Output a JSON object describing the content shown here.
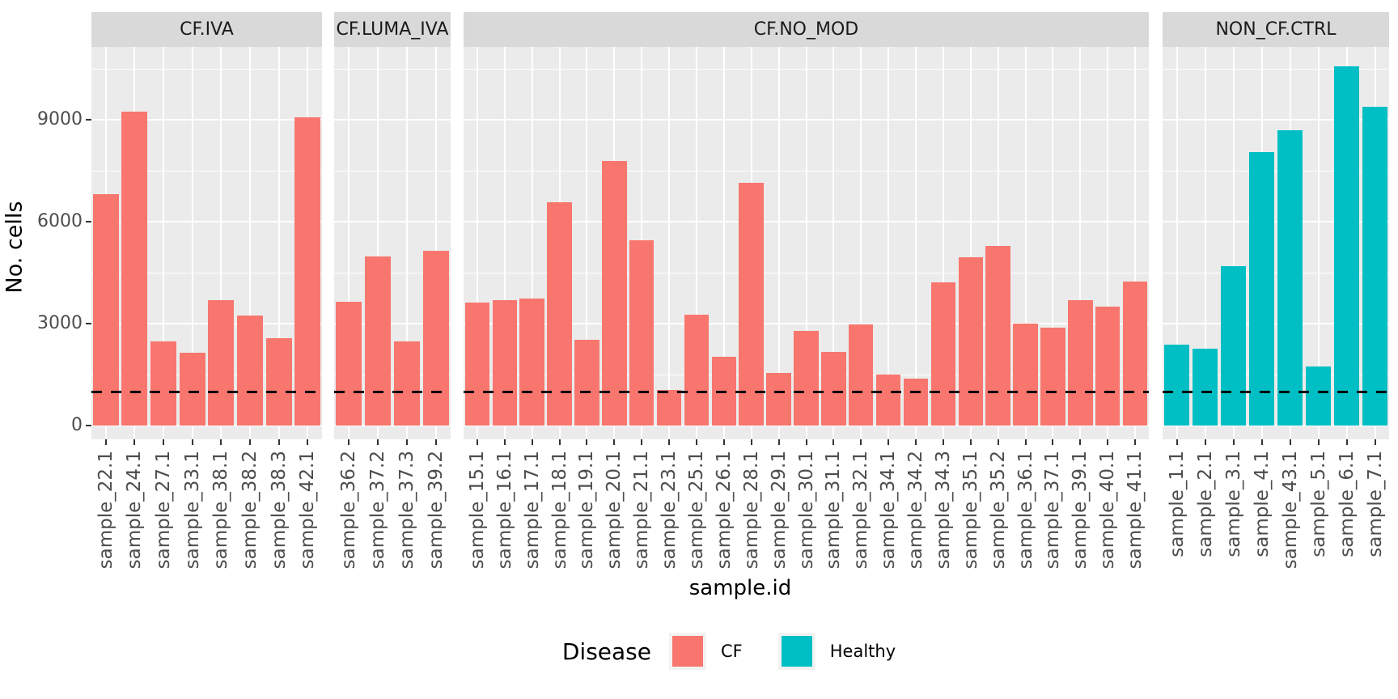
{
  "chart_data": {
    "type": "bar",
    "title": "",
    "xlabel": "sample.id",
    "ylabel": "No. cells",
    "y_ticks": [
      "0",
      "3000",
      "6000",
      "9000"
    ],
    "ylim": [
      0,
      11140
    ],
    "grid": true,
    "threshold_line": {
      "value": 1000,
      "style": "dashed",
      "color": "#000000"
    },
    "panel_bg": "#EBEBEB",
    "strip_bg": "#D9D9D9",
    "facets": [
      {
        "label": "CF.IVA",
        "disease": "CF",
        "color": "#F8766D",
        "categories": [
          "sample_22.1",
          "sample_24.1",
          "sample_27.1",
          "sample_33.1",
          "sample_38.1",
          "sample_38.2",
          "sample_38.3",
          "sample_42.1"
        ],
        "values": [
          6810,
          9250,
          2470,
          2150,
          3700,
          3240,
          2580,
          9070
        ]
      },
      {
        "label": "CF.LUMA_IVA",
        "disease": "CF",
        "color": "#F8766D",
        "categories": [
          "sample_36.2",
          "sample_37.2",
          "sample_37.3",
          "sample_39.2"
        ],
        "values": [
          3640,
          4970,
          2470,
          5150
        ]
      },
      {
        "label": "CF.NO_MOD",
        "disease": "CF",
        "color": "#F8766D",
        "categories": [
          "sample_15.1",
          "sample_16.1",
          "sample_17.1",
          "sample_18.1",
          "sample_19.1",
          "sample_20.1",
          "sample_21.1",
          "sample_23.1",
          "sample_25.1",
          "sample_26.1",
          "sample_28.1",
          "sample_29.1",
          "sample_30.1",
          "sample_31.1",
          "sample_32.1",
          "sample_34.1",
          "sample_34.2",
          "sample_34.3",
          "sample_35.1",
          "sample_35.2",
          "sample_36.1",
          "sample_37.1",
          "sample_39.1",
          "sample_40.1",
          "sample_41.1"
        ],
        "values": [
          3620,
          3700,
          3740,
          6560,
          2520,
          7790,
          5450,
          1050,
          3260,
          2030,
          7150,
          1550,
          2780,
          2170,
          2980,
          1490,
          1370,
          4210,
          4950,
          5290,
          3000,
          2870,
          3700,
          3490,
          4230
        ]
      },
      {
        "label": "NON_CF.CTRL",
        "disease": "Healthy",
        "color": "#00BFC4",
        "categories": [
          "sample_1.1",
          "sample_2.1",
          "sample_3.1",
          "sample_4.1",
          "sample_43.1",
          "sample_5.1",
          "sample_6.1",
          "sample_7.1"
        ],
        "values": [
          2380,
          2270,
          4680,
          8040,
          8690,
          1750,
          10580,
          9390
        ]
      }
    ],
    "legend": {
      "title": "Disease",
      "position": "bottom",
      "items": [
        {
          "label": "CF",
          "color": "#F8766D"
        },
        {
          "label": "Healthy",
          "color": "#00BFC4"
        }
      ]
    }
  }
}
